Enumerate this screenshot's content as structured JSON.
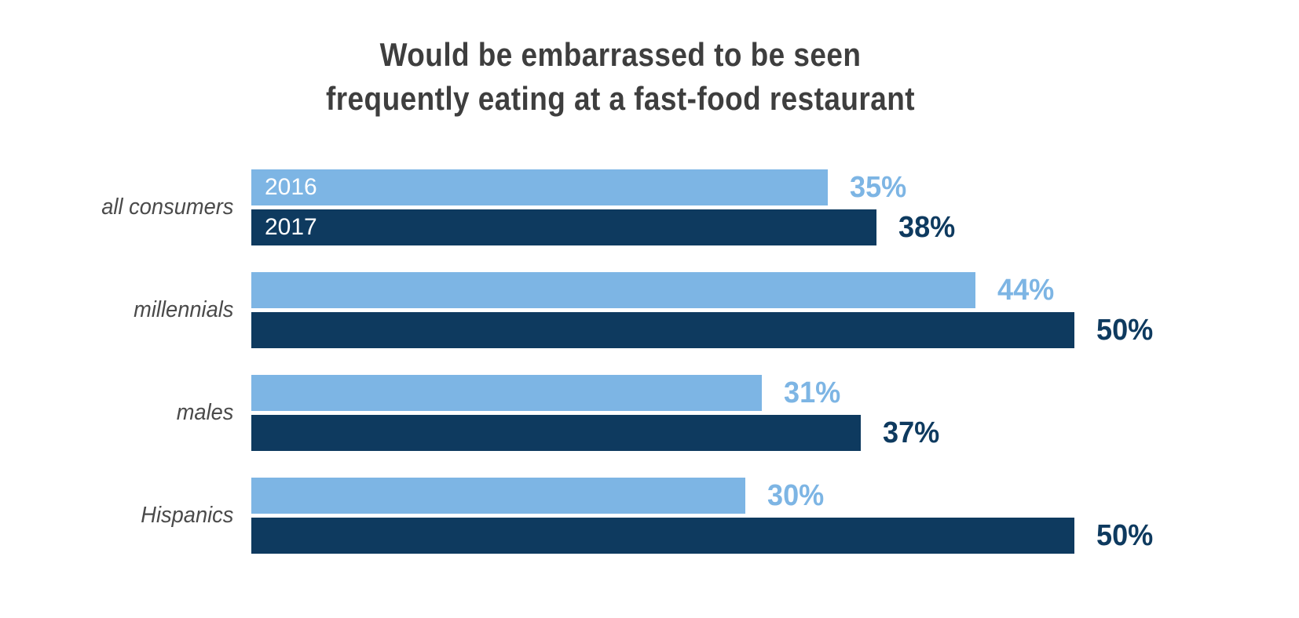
{
  "page": {
    "background": "#FFFFFF"
  },
  "chart": {
    "title": "Would be embarrassed to be seen frequently eating at a fast-food restaurant",
    "title_lines": [
      "Would be embarrassed to be seen",
      "frequently eating at a fast-food restaurant"
    ]
  },
  "chart_data": {
    "type": "bar",
    "orientation": "horizontal",
    "title": "Would be embarrassed to be seen frequently eating at a fast-food restaurant",
    "categories": [
      "all consumers",
      "millennials",
      "males",
      "Hispanics"
    ],
    "series": [
      {
        "name": "2016",
        "color": "#7DB5E4",
        "values": [
          35,
          44,
          31,
          30
        ]
      },
      {
        "name": "2017",
        "color": "#0E3A5F",
        "values": [
          38,
          50,
          37,
          50
        ]
      }
    ],
    "value_suffix": "%",
    "value_labels": "end-of-bar",
    "series_name_labels": "inside-first-group-bars",
    "xlim": [
      0,
      50
    ],
    "grid": false,
    "legend_position": "none",
    "axis_ticks": "none"
  },
  "colors": {
    "series_2016": "#7DB5E4",
    "series_2017": "#0E3A5F",
    "title_text": "#3E3E3E",
    "category_text": "#4A4A4A",
    "bar_inner_label": "#FFFFFF",
    "background": "#FFFFFF"
  }
}
